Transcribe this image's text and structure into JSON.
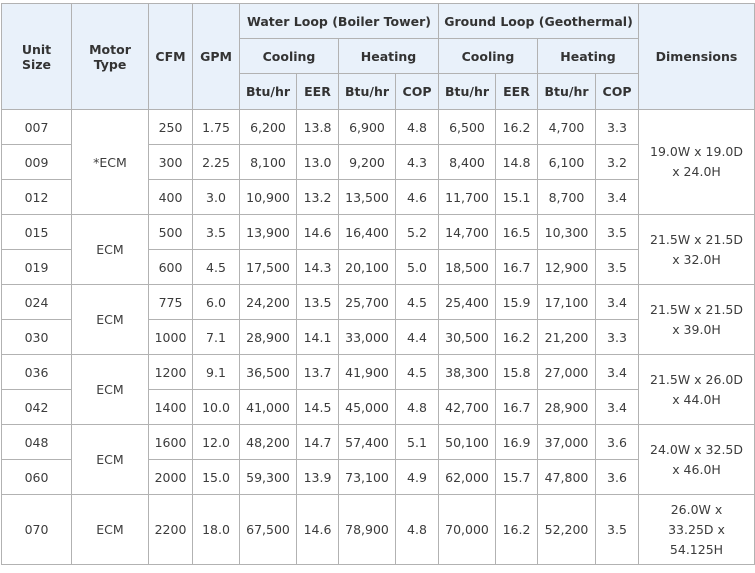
{
  "headers": {
    "unit_size": [
      "Unit",
      "Size"
    ],
    "motor_type": [
      "Motor",
      "Type"
    ],
    "cfm": "CFM",
    "gpm": "GPM",
    "water_loop": "Water Loop (Boiler Tower)",
    "ground_loop": "Ground Loop (Geothermal)",
    "cooling": "Cooling",
    "heating": "Heating",
    "btu_hr": "Btu/hr",
    "eer": "EER",
    "cop": "COP",
    "dimensions": "Dimensions"
  },
  "rows": [
    {
      "unit": "007",
      "cfm": "250",
      "gpm": "1.75",
      "wl_cool_btu": "6,200",
      "wl_eer": "13.8",
      "wl_heat_btu": "6,900",
      "wl_cop": "4.8",
      "gl_cool_btu": "6,500",
      "gl_eer": "16.2",
      "gl_heat_btu": "4,700",
      "gl_cop": "3.3"
    },
    {
      "unit": "009",
      "cfm": "300",
      "gpm": "2.25",
      "wl_cool_btu": "8,100",
      "wl_eer": "13.0",
      "wl_heat_btu": "9,200",
      "wl_cop": "4.3",
      "gl_cool_btu": "8,400",
      "gl_eer": "14.8",
      "gl_heat_btu": "6,100",
      "gl_cop": "3.2"
    },
    {
      "unit": "012",
      "cfm": "400",
      "gpm": "3.0",
      "wl_cool_btu": "10,900",
      "wl_eer": "13.2",
      "wl_heat_btu": "13,500",
      "wl_cop": "4.6",
      "gl_cool_btu": "11,700",
      "gl_eer": "15.1",
      "gl_heat_btu": "8,700",
      "gl_cop": "3.4"
    },
    {
      "unit": "015",
      "cfm": "500",
      "gpm": "3.5",
      "wl_cool_btu": "13,900",
      "wl_eer": "14.6",
      "wl_heat_btu": "16,400",
      "wl_cop": "5.2",
      "gl_cool_btu": "14,700",
      "gl_eer": "16.5",
      "gl_heat_btu": "10,300",
      "gl_cop": "3.5"
    },
    {
      "unit": "019",
      "cfm": "600",
      "gpm": "4.5",
      "wl_cool_btu": "17,500",
      "wl_eer": "14.3",
      "wl_heat_btu": "20,100",
      "wl_cop": "5.0",
      "gl_cool_btu": "18,500",
      "gl_eer": "16.7",
      "gl_heat_btu": "12,900",
      "gl_cop": "3.5"
    },
    {
      "unit": "024",
      "cfm": "775",
      "gpm": "6.0",
      "wl_cool_btu": "24,200",
      "wl_eer": "13.5",
      "wl_heat_btu": "25,700",
      "wl_cop": "4.5",
      "gl_cool_btu": "25,400",
      "gl_eer": "15.9",
      "gl_heat_btu": "17,100",
      "gl_cop": "3.4"
    },
    {
      "unit": "030",
      "cfm": "1000",
      "gpm": "7.1",
      "wl_cool_btu": "28,900",
      "wl_eer": "14.1",
      "wl_heat_btu": "33,000",
      "wl_cop": "4.4",
      "gl_cool_btu": "30,500",
      "gl_eer": "16.2",
      "gl_heat_btu": "21,200",
      "gl_cop": "3.3"
    },
    {
      "unit": "036",
      "cfm": "1200",
      "gpm": "9.1",
      "wl_cool_btu": "36,500",
      "wl_eer": "13.7",
      "wl_heat_btu": "41,900",
      "wl_cop": "4.5",
      "gl_cool_btu": "38,300",
      "gl_eer": "15.8",
      "gl_heat_btu": "27,000",
      "gl_cop": "3.4"
    },
    {
      "unit": "042",
      "cfm": "1400",
      "gpm": "10.0",
      "wl_cool_btu": "41,000",
      "wl_eer": "14.5",
      "wl_heat_btu": "45,000",
      "wl_cop": "4.8",
      "gl_cool_btu": "42,700",
      "gl_eer": "16.7",
      "gl_heat_btu": "28,900",
      "gl_cop": "3.4"
    },
    {
      "unit": "048",
      "cfm": "1600",
      "gpm": "12.0",
      "wl_cool_btu": "48,200",
      "wl_eer": "14.7",
      "wl_heat_btu": "57,400",
      "wl_cop": "5.1",
      "gl_cool_btu": "50,100",
      "gl_eer": "16.9",
      "gl_heat_btu": "37,000",
      "gl_cop": "3.6"
    },
    {
      "unit": "060",
      "cfm": "2000",
      "gpm": "15.0",
      "wl_cool_btu": "59,300",
      "wl_eer": "13.9",
      "wl_heat_btu": "73,100",
      "wl_cop": "4.9",
      "gl_cool_btu": "62,000",
      "gl_eer": "15.7",
      "gl_heat_btu": "47,800",
      "gl_cop": "3.6"
    },
    {
      "unit": "070",
      "cfm": "2200",
      "gpm": "18.0",
      "wl_cool_btu": "67,500",
      "wl_eer": "14.6",
      "wl_heat_btu": "78,900",
      "wl_cop": "4.8",
      "gl_cool_btu": "70,000",
      "gl_eer": "16.2",
      "gl_heat_btu": "52,200",
      "gl_cop": "3.5"
    }
  ],
  "groups": [
    {
      "motor": "*ECM",
      "dimensions": [
        "19.0W x 19.0D",
        "x 24.0H"
      ]
    },
    {
      "motor": "ECM",
      "dimensions": [
        "21.5W x 21.5D",
        "x 32.0H"
      ]
    },
    {
      "motor": "ECM",
      "dimensions": [
        "21.5W x 21.5D",
        "x 39.0H"
      ]
    },
    {
      "motor": "ECM",
      "dimensions": [
        "21.5W x 26.0D",
        "x 44.0H"
      ]
    },
    {
      "motor": "ECM",
      "dimensions": [
        "24.0W x 32.5D",
        "x 46.0H"
      ]
    },
    {
      "motor": "ECM",
      "dimensions": [
        "26.0W x",
        "33.25D x",
        "54.125H"
      ]
    }
  ],
  "colors": {
    "header_bg": "#e9f1fa",
    "border": "#b2b2b2",
    "text": "#3c3c3c"
  }
}
